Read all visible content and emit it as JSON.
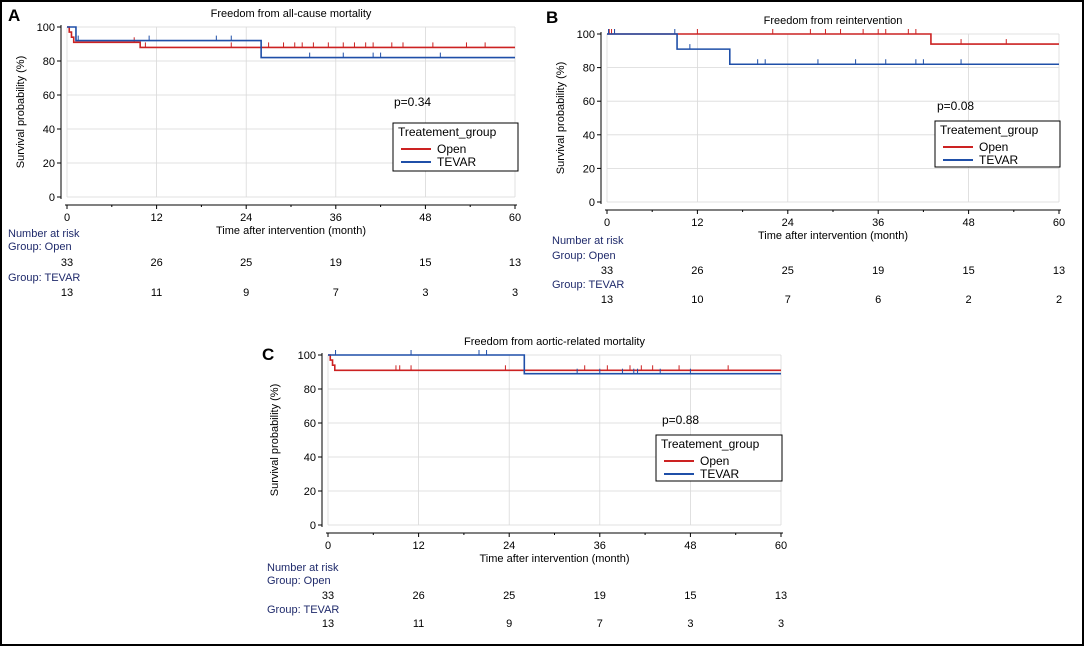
{
  "figure": {
    "legend_title": "Treatement_group",
    "risk_header": "Number at risk",
    "colors": {
      "open": "#cc2222",
      "tevar": "#1f4fa8",
      "axis": "#000000",
      "grid": "#d9d9d9"
    }
  },
  "chart_data": [
    {
      "panel_label": "A",
      "type": "line",
      "title": "Freedom from all-cause mortality",
      "xlabel": "Time after intervention (month)",
      "ylabel": "Survival probability (%)",
      "xlim": [
        0,
        60
      ],
      "ylim": [
        0,
        100
      ],
      "x_ticks": [
        0,
        12,
        24,
        36,
        48,
        60
      ],
      "y_ticks": [
        0,
        20,
        40,
        60,
        80,
        100
      ],
      "grid": true,
      "p_value": "p=0.34",
      "legend_position": "right-middle",
      "series": [
        {
          "name": "Open",
          "color_key": "open",
          "steps": [
            [
              0,
              100
            ],
            [
              0.3,
              97
            ],
            [
              0.6,
              94
            ],
            [
              0.9,
              91
            ],
            [
              9.5,
              91
            ],
            [
              9.8,
              88
            ],
            [
              60,
              88
            ]
          ],
          "censored": [
            9,
            10.5,
            22,
            27,
            29,
            30.5,
            31.5,
            33,
            35,
            37,
            38.5,
            40,
            41,
            43.5,
            45,
            49,
            53.5,
            56
          ]
        },
        {
          "name": "TEVAR",
          "color_key": "tevar",
          "steps": [
            [
              0,
              100
            ],
            [
              1.2,
              100
            ],
            [
              1.2,
              92
            ],
            [
              26,
              92
            ],
            [
              26,
              82
            ],
            [
              60,
              82
            ]
          ],
          "censored": [
            1.5,
            11,
            20,
            22,
            32.5,
            37,
            41,
            42,
            50
          ]
        }
      ],
      "risk_table": {
        "groups": [
          {
            "label": "Group: Open",
            "values": [
              33,
              26,
              25,
              19,
              15,
              13
            ]
          },
          {
            "label": "Group: TEVAR",
            "values": [
              13,
              11,
              9,
              7,
              3,
              3
            ]
          }
        ]
      }
    },
    {
      "panel_label": "B",
      "type": "line",
      "title": "Freedom from reintervention",
      "xlabel": "Time after intervention (month)",
      "ylabel": "Survival probability (%)",
      "xlim": [
        0,
        60
      ],
      "ylim": [
        0,
        100
      ],
      "x_ticks": [
        0,
        12,
        24,
        36,
        48,
        60
      ],
      "y_ticks": [
        0,
        20,
        40,
        60,
        80,
        100
      ],
      "grid": true,
      "p_value": "p=0.08",
      "legend_position": "right-middle",
      "series": [
        {
          "name": "Open",
          "color_key": "open",
          "steps": [
            [
              0,
              100
            ],
            [
              43,
              100
            ],
            [
              43,
              94
            ],
            [
              60,
              94
            ]
          ],
          "censored": [
            0.3,
            0.6,
            1,
            12,
            22,
            27,
            29,
            31,
            34,
            36,
            37,
            40,
            41,
            47,
            53
          ]
        },
        {
          "name": "TEVAR",
          "color_key": "tevar",
          "steps": [
            [
              0,
              100
            ],
            [
              9.3,
              100
            ],
            [
              9.3,
              91
            ],
            [
              16.3,
              91
            ],
            [
              16.3,
              82
            ],
            [
              60,
              82
            ]
          ],
          "censored": [
            0.2,
            1,
            9,
            11,
            20,
            21,
            28,
            33,
            37,
            41,
            42,
            47
          ]
        }
      ],
      "risk_table": {
        "groups": [
          {
            "label": "Group: Open",
            "values": [
              33,
              26,
              25,
              19,
              15,
              13
            ]
          },
          {
            "label": "Group: TEVAR",
            "values": [
              13,
              10,
              7,
              6,
              2,
              2
            ]
          }
        ]
      }
    },
    {
      "panel_label": "C",
      "type": "line",
      "title": "Freedom from aortic-related mortality",
      "xlabel": "Time after intervention (month)",
      "ylabel": "Survival probability (%)",
      "xlim": [
        0,
        60
      ],
      "ylim": [
        0,
        100
      ],
      "x_ticks": [
        0,
        12,
        24,
        36,
        48,
        60
      ],
      "y_ticks": [
        0,
        20,
        40,
        60,
        80,
        100
      ],
      "grid": true,
      "p_value": "p=0.88",
      "legend_position": "right-middle",
      "series": [
        {
          "name": "Open",
          "color_key": "open",
          "steps": [
            [
              0,
              100
            ],
            [
              0.3,
              97
            ],
            [
              0.6,
              94
            ],
            [
              0.9,
              91
            ],
            [
              60,
              91
            ]
          ],
          "censored": [
            9,
            9.5,
            11,
            23.5,
            34,
            37,
            40,
            41.5,
            43,
            46.5,
            53
          ]
        },
        {
          "name": "TEVAR",
          "color_key": "tevar",
          "steps": [
            [
              0,
              100
            ],
            [
              26,
              100
            ],
            [
              26,
              89
            ],
            [
              60,
              89
            ]
          ],
          "censored": [
            1,
            11,
            20,
            21,
            33,
            36,
            39,
            40.5,
            41,
            44,
            48
          ]
        }
      ],
      "risk_table": {
        "groups": [
          {
            "label": "Group: Open",
            "values": [
              33,
              26,
              25,
              19,
              15,
              13
            ]
          },
          {
            "label": "Group: TEVAR",
            "values": [
              13,
              11,
              9,
              7,
              3,
              3
            ]
          }
        ]
      }
    }
  ]
}
